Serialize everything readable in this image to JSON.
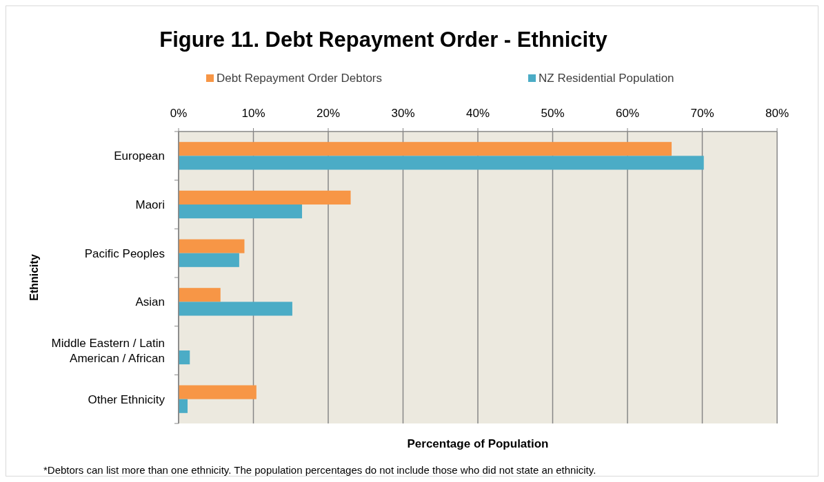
{
  "chart_data": {
    "type": "bar",
    "orientation": "horizontal",
    "title": "Figure 11. Debt Repayment Order - Ethnicity",
    "xlabel": "Percentage of Population",
    "ylabel": "Ethnicity",
    "categories": [
      "European",
      "Maori",
      "Pacific Peoples",
      "Asian",
      "Middle Eastern / Latin American / African",
      "Other Ethnicity"
    ],
    "series": [
      {
        "name": "Debt Repayment Order Debtors",
        "color": "#f79646",
        "values": [
          65.9,
          23.0,
          8.8,
          5.6,
          null,
          10.4
        ]
      },
      {
        "name": "NZ Residential Population",
        "color": "#4bacc6",
        "values": [
          70.2,
          16.5,
          8.1,
          15.2,
          1.5,
          1.2
        ]
      }
    ],
    "xlim": [
      0,
      80
    ],
    "xticks": [
      {
        "value": 0,
        "label": "0%"
      },
      {
        "value": 10,
        "label": "10%"
      },
      {
        "value": 20,
        "label": "20%"
      },
      {
        "value": 30,
        "label": "30%"
      },
      {
        "value": 40,
        "label": "40%"
      },
      {
        "value": 50,
        "label": "50%"
      },
      {
        "value": 60,
        "label": "60%"
      },
      {
        "value": 70,
        "label": "70%"
      },
      {
        "value": 80,
        "label": "80%"
      }
    ],
    "grid": "x",
    "legend": "top",
    "annotations": [
      "*Debtors can list more than one ethnicity.   The population percentages do not include those who did not state an ethnicity."
    ]
  }
}
